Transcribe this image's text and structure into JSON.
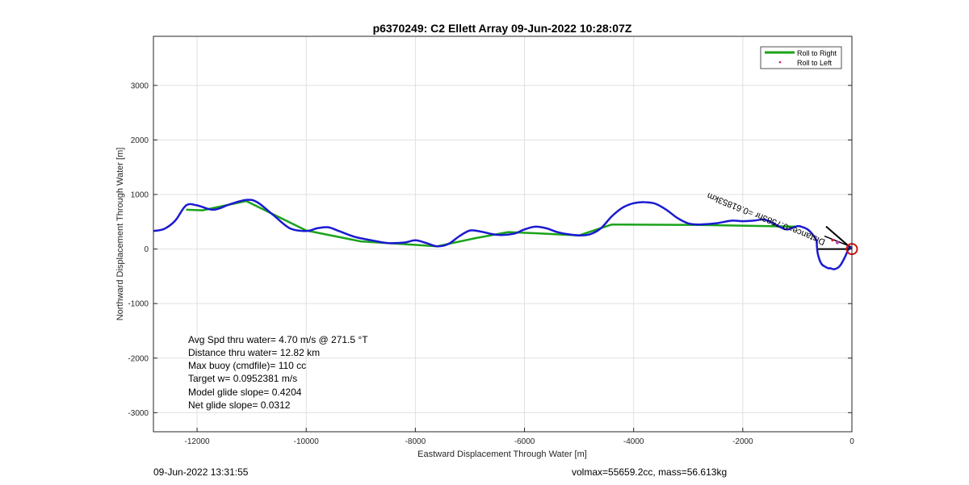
{
  "chart_data": {
    "type": "line",
    "title": "p6370249: C2 Ellett Array 09-Jun-2022 10:28:07Z",
    "xlabel": "Eastward Displacement Through Water [m]",
    "ylabel": "Northward Displacement Through Water [m]",
    "xlim": [
      -12800,
      0
    ],
    "ylim": [
      -3350,
      3900
    ],
    "xticks": [
      -12000,
      -10000,
      -8000,
      -6000,
      -4000,
      -2000,
      0
    ],
    "yticks": [
      -3000,
      -2000,
      -1000,
      0,
      1000,
      2000,
      3000
    ],
    "xtick_labels": [
      "-12000",
      "-10000",
      "-8000",
      "-6000",
      "-4000",
      "-2000",
      "0"
    ],
    "ytick_labels": [
      "-3000",
      "-2000",
      "-1000",
      "0",
      "1000",
      "2000",
      "3000"
    ],
    "grid": true,
    "legend_position": "top-right",
    "legend": [
      {
        "label": "Roll to Right",
        "color": "#1aa31a",
        "style": "line"
      },
      {
        "label": "Roll to Left",
        "color": "#e0163c",
        "style": "marker"
      }
    ],
    "series": [
      {
        "name": "Roll to Right",
        "color": "#1aa31a",
        "x": [
          -12200,
          -11900,
          -11100,
          -10000,
          -9000,
          -8500,
          -7600,
          -6900,
          -6300,
          -5800,
          -5000,
          -4400,
          -2800,
          -1500,
          -1000
        ],
        "y": [
          720,
          710,
          880,
          340,
          140,
          110,
          50,
          200,
          310,
          290,
          250,
          450,
          440,
          420,
          410
        ]
      },
      {
        "name": "track",
        "color": "#1a1ad0",
        "x": [
          -12800,
          -12600,
          -12400,
          -12200,
          -12000,
          -11700,
          -11400,
          -11100,
          -10900,
          -10600,
          -10300,
          -10000,
          -9800,
          -9600,
          -9400,
          -9100,
          -8800,
          -8500,
          -8200,
          -8000,
          -7800,
          -7600,
          -7400,
          -7200,
          -7000,
          -6800,
          -6500,
          -6200,
          -6000,
          -5800,
          -5600,
          -5400,
          -5200,
          -5000,
          -4800,
          -4600,
          -4400,
          -4200,
          -4000,
          -3800,
          -3600,
          -3400,
          -3200,
          -3000,
          -2800,
          -2500,
          -2200,
          -2000,
          -1800,
          -1600,
          -1400,
          -1200,
          -1000,
          -900,
          -800,
          -700,
          -650,
          -640,
          -620,
          -560,
          -480,
          -420,
          -400,
          -320,
          -220,
          -120,
          -60,
          -30,
          -10,
          0
        ],
        "y": [
          330,
          370,
          520,
          800,
          800,
          720,
          820,
          900,
          860,
          620,
          380,
          330,
          380,
          400,
          330,
          220,
          160,
          110,
          120,
          160,
          110,
          50,
          90,
          230,
          340,
          320,
          260,
          280,
          360,
          410,
          380,
          310,
          270,
          250,
          270,
          380,
          600,
          760,
          840,
          860,
          830,
          720,
          570,
          470,
          450,
          470,
          520,
          510,
          520,
          540,
          450,
          360,
          420,
          400,
          350,
          240,
          150,
          30,
          -110,
          -270,
          -330,
          -355,
          -350,
          -370,
          -310,
          -130,
          10,
          40,
          10,
          0
        ]
      }
    ],
    "annotations": {
      "stats": [
        "Avg Spd thru water=  4.70 m/s @ 271.5 °T",
        "Distance thru water= 12.82 km",
        "Max buoy (cmdfile)= 110 cc",
        "Target w= 0.0952381 m/s",
        "Model glide slope= 0.4204",
        "Net glide slope= 0.0312"
      ],
      "rotated_label": "Distance=0.7583hr =0.61853km"
    },
    "footer_left": "09-Jun-2022 13:31:55",
    "footer_right": "volmax=55659.2cc, mass=56.613kg"
  }
}
